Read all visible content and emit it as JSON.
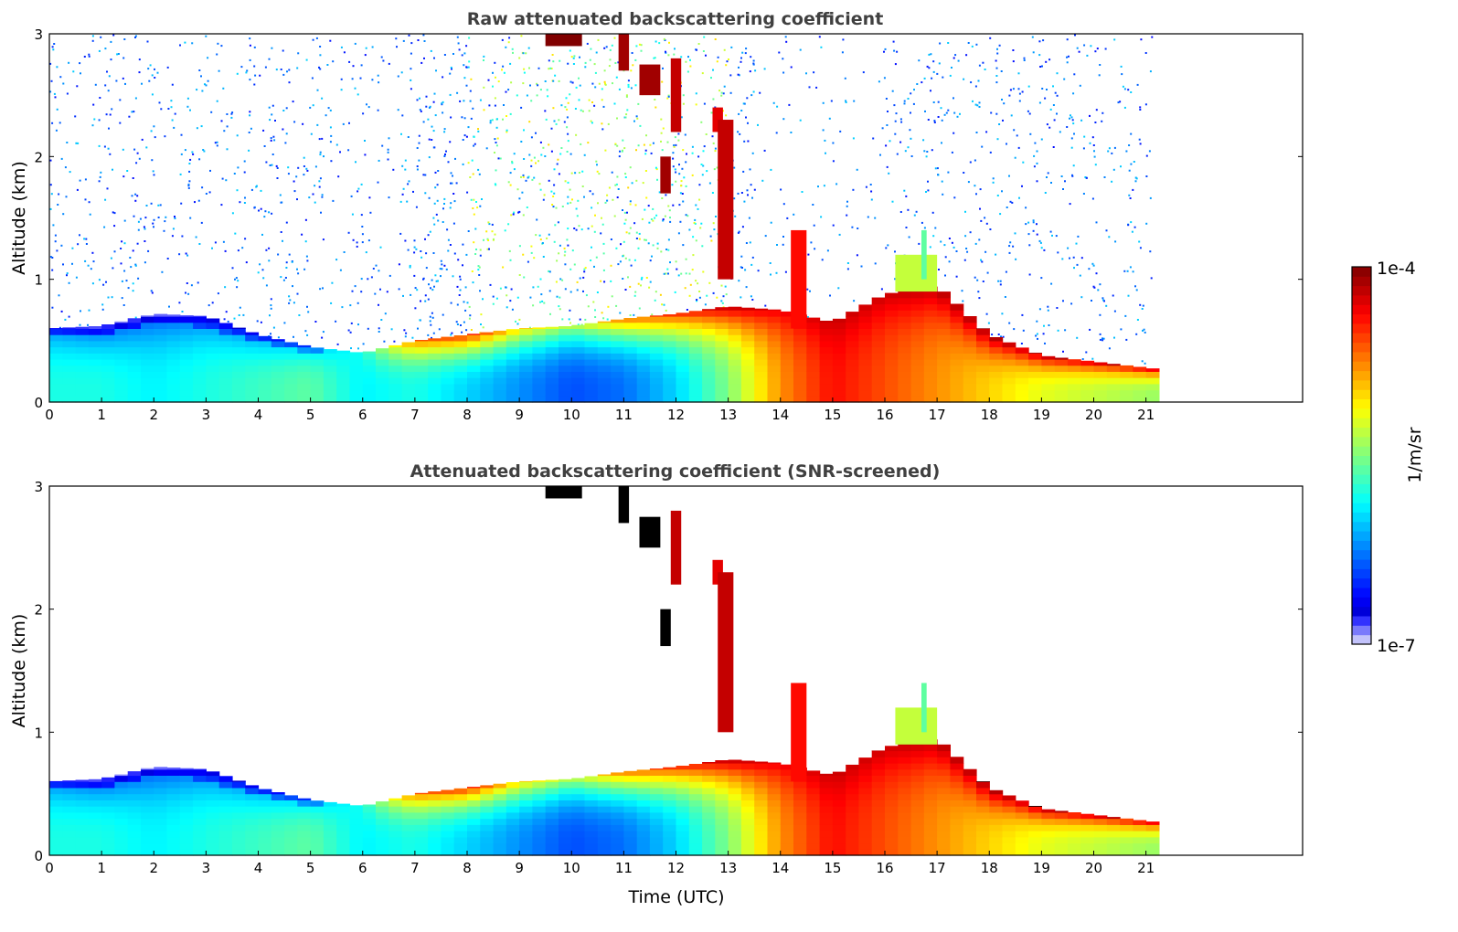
{
  "chart_data": {
    "type": "heatmap",
    "xlabel": "Time (UTC)",
    "xlim": [
      0,
      24
    ],
    "xticks": [
      "0",
      "1",
      "2",
      "3",
      "4",
      "5",
      "6",
      "7",
      "8",
      "9",
      "10",
      "11",
      "12",
      "13",
      "14",
      "15",
      "16",
      "17",
      "18",
      "19",
      "20",
      "21"
    ],
    "ylim": [
      0,
      3
    ],
    "yticks": [
      "0",
      "1",
      "2",
      "3"
    ],
    "colorbar": {
      "label": "1/m/sr",
      "max_label": "1e-4",
      "min_label": "1e-7",
      "scale": "log",
      "range": [
        1e-07,
        0.0001
      ],
      "colormap": "jet"
    },
    "panels": [
      {
        "title": "Raw attenuated backscattering coefficient",
        "ylabel": "Altitude (km)",
        "screened": false
      },
      {
        "title": "Attenuated backscattering coefficient (SNR-screened)",
        "ylabel": "Altitude (km)",
        "screened": true
      }
    ],
    "profile": {
      "hours": [
        0,
        1,
        2,
        3,
        4,
        5,
        6,
        7,
        8,
        9,
        10,
        11,
        12,
        13,
        14,
        15,
        16,
        17,
        18,
        19,
        20,
        21
      ],
      "layer_top_km": [
        0.6,
        0.62,
        0.72,
        0.7,
        0.55,
        0.45,
        0.4,
        0.5,
        0.55,
        0.6,
        0.62,
        0.68,
        0.72,
        0.78,
        0.75,
        0.65,
        0.88,
        0.95,
        0.55,
        0.38,
        0.33,
        0.28
      ],
      "surface_log10": [
        -5.8,
        -5.8,
        -5.9,
        -5.8,
        -5.7,
        -5.6,
        -5.9,
        -5.8,
        -6.0,
        -6.2,
        -6.4,
        -6.3,
        -6.0,
        -5.5,
        -4.8,
        -4.4,
        -4.6,
        -4.8,
        -5.0,
        -5.2,
        -5.3,
        -5.4
      ],
      "layer_top_log10": [
        -6.3,
        -6.5,
        -6.5,
        -6.4,
        -6.3,
        -6.1,
        -5.8,
        -4.6,
        -4.3,
        -4.9,
        -5.3,
        -4.6,
        -4.4,
        -4.1,
        -4.3,
        -4.2,
        -4.2,
        -4.1,
        -4.0,
        -4.05,
        -4.05,
        -4.05
      ],
      "end_hour": 21.1,
      "clouds": [
        {
          "t0": 9.5,
          "t1": 10.2,
          "z0": 2.9,
          "z1": 3.0,
          "log10": -4.0
        },
        {
          "t0": 10.9,
          "t1": 11.1,
          "z0": 2.7,
          "z1": 3.0,
          "log10": -4.1
        },
        {
          "t0": 11.3,
          "t1": 11.7,
          "z0": 2.5,
          "z1": 2.75,
          "log10": -4.1
        },
        {
          "t0": 11.9,
          "t1": 12.1,
          "z0": 2.2,
          "z1": 2.8,
          "log10": -4.2
        },
        {
          "t0": 11.7,
          "t1": 11.9,
          "z0": 1.7,
          "z1": 2.0,
          "log10": -4.1
        },
        {
          "t0": 12.7,
          "t1": 12.9,
          "z0": 2.2,
          "z1": 2.4,
          "log10": -4.3
        },
        {
          "t0": 12.8,
          "t1": 13.1,
          "z0": 1.0,
          "z1": 2.3,
          "log10": -4.2
        },
        {
          "t0": 14.2,
          "t1": 14.5,
          "z0": 0.6,
          "z1": 1.4,
          "log10": -4.4
        },
        {
          "t0": 16.2,
          "t1": 17.0,
          "z0": 0.9,
          "z1": 1.2,
          "log10": -5.3
        },
        {
          "t0": 16.7,
          "t1": 16.8,
          "z0": 1.0,
          "z1": 1.4,
          "log10": -5.6
        }
      ]
    }
  }
}
